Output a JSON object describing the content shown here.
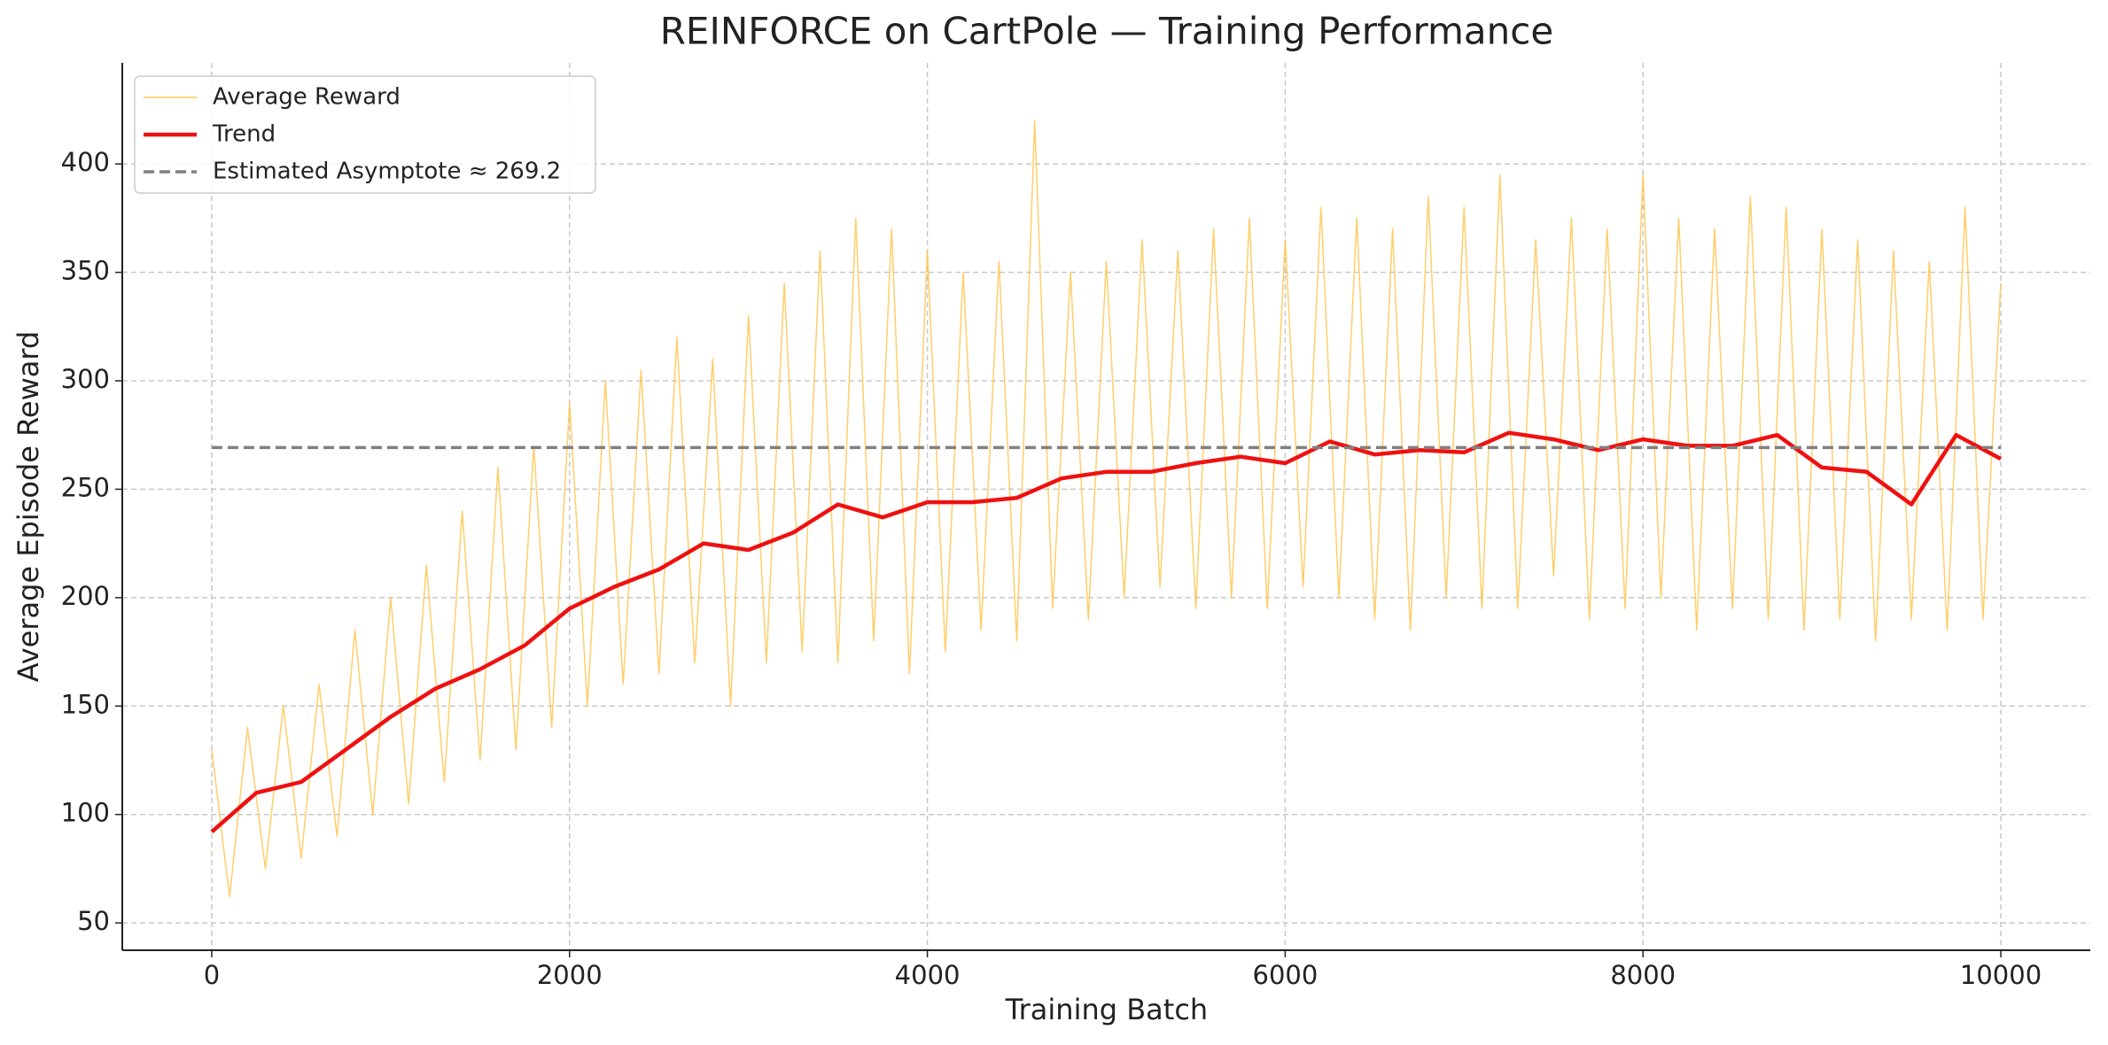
{
  "chart_data": {
    "type": "line",
    "title": "REINFORCE on CartPole — Training Performance",
    "xlabel": "Training Batch",
    "ylabel": "Average Episode Reward",
    "xlim": [
      -500,
      10500
    ],
    "ylim": [
      37.4,
      446.6
    ],
    "xticks": [
      0,
      2000,
      4000,
      6000,
      8000,
      10000
    ],
    "yticks": [
      50,
      100,
      150,
      200,
      250,
      300,
      350,
      400
    ],
    "grid": true,
    "legend": "upper left",
    "series": [
      {
        "name": "Average Reward",
        "color": "#ffc550",
        "width": 1.5,
        "x": [
          0,
          100,
          200,
          300,
          400,
          500,
          600,
          700,
          800,
          900,
          1000,
          1100,
          1200,
          1300,
          1400,
          1500,
          1600,
          1700,
          1800,
          1900,
          2000,
          2100,
          2200,
          2300,
          2400,
          2500,
          2600,
          2700,
          2800,
          2900,
          3000,
          3100,
          3200,
          3300,
          3400,
          3500,
          3600,
          3700,
          3800,
          3900,
          4000,
          4100,
          4200,
          4300,
          4400,
          4500,
          4600,
          4700,
          4800,
          4900,
          5000,
          5100,
          5200,
          5300,
          5400,
          5500,
          5600,
          5700,
          5800,
          5900,
          6000,
          6100,
          6200,
          6300,
          6400,
          6500,
          6600,
          6700,
          6800,
          6900,
          7000,
          7100,
          7200,
          7300,
          7400,
          7500,
          7600,
          7700,
          7800,
          7900,
          8000,
          8100,
          8200,
          8300,
          8400,
          8500,
          8600,
          8700,
          8800,
          8900,
          9000,
          9100,
          9200,
          9300,
          9400,
          9500,
          9600,
          9700,
          9800,
          9900,
          10000
        ],
        "values": [
          130,
          62,
          140,
          75,
          150,
          80,
          160,
          90,
          185,
          100,
          200,
          105,
          215,
          115,
          240,
          125,
          260,
          130,
          270,
          140,
          290,
          150,
          300,
          160,
          305,
          165,
          320,
          170,
          310,
          150,
          330,
          170,
          345,
          175,
          360,
          170,
          375,
          180,
          370,
          165,
          360,
          175,
          350,
          185,
          355,
          180,
          420,
          195,
          350,
          190,
          355,
          200,
          365,
          205,
          360,
          195,
          370,
          200,
          375,
          195,
          365,
          205,
          380,
          200,
          375,
          190,
          370,
          185,
          385,
          200,
          380,
          195,
          395,
          195,
          365,
          210,
          375,
          190,
          370,
          195,
          395,
          200,
          375,
          185,
          370,
          195,
          385,
          190,
          380,
          185,
          370,
          190,
          365,
          180,
          360,
          190,
          355,
          185,
          380,
          190,
          345
        ]
      },
      {
        "name": "Trend",
        "color": "#ee1111",
        "width": 4.5,
        "x": [
          0,
          250,
          500,
          750,
          1000,
          1250,
          1500,
          1750,
          2000,
          2250,
          2500,
          2750,
          3000,
          3250,
          3500,
          3750,
          4000,
          4250,
          4500,
          4750,
          5000,
          5250,
          5500,
          5750,
          6000,
          6250,
          6500,
          6750,
          7000,
          7250,
          7500,
          7750,
          8000,
          8250,
          8500,
          8750,
          9000,
          9250,
          9500,
          9750,
          10000
        ],
        "values": [
          92,
          110,
          115,
          130,
          145,
          158,
          167,
          178,
          195,
          205,
          213,
          225,
          222,
          230,
          243,
          237,
          244,
          244,
          246,
          255,
          258,
          258,
          262,
          265,
          262,
          272,
          266,
          268,
          267,
          276,
          273,
          268,
          273,
          270,
          270,
          275,
          260,
          258,
          243,
          275,
          264
        ]
      }
    ],
    "reference_line": {
      "name": "Estimated Asymptote ≈ 269.2",
      "value": 269.2,
      "color": "#808080",
      "dashed": true
    }
  }
}
